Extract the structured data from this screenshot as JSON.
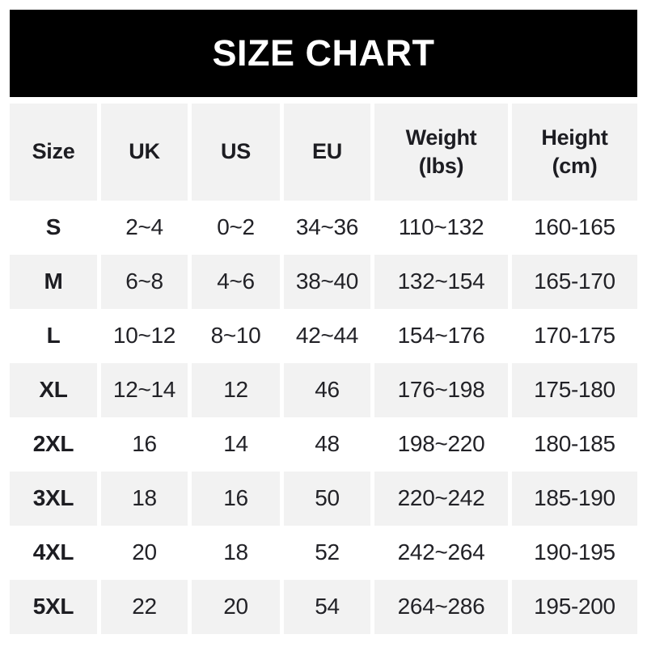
{
  "title": "SIZE CHART",
  "colors": {
    "banner_bg": "#000000",
    "banner_text": "#ffffff",
    "alt_row_bg": "#f2f2f2",
    "text": "#222227",
    "page_bg": "#ffffff"
  },
  "chart_data": {
    "type": "table",
    "title": "SIZE CHART",
    "columns": [
      "Size",
      "UK",
      "US",
      "EU",
      "Weight (lbs)",
      "Height (cm)"
    ],
    "rows": [
      [
        "S",
        "2~4",
        "0~2",
        "34~36",
        "110~132",
        "160-165"
      ],
      [
        "M",
        "6~8",
        "4~6",
        "38~40",
        "132~154",
        "165-170"
      ],
      [
        "L",
        "10~12",
        "8~10",
        "42~44",
        "154~176",
        "170-175"
      ],
      [
        "XL",
        "12~14",
        "12",
        "46",
        "176~198",
        "175-180"
      ],
      [
        "2XL",
        "16",
        "14",
        "48",
        "198~220",
        "180-185"
      ],
      [
        "3XL",
        "18",
        "16",
        "50",
        "220~242",
        "185-190"
      ],
      [
        "4XL",
        "20",
        "18",
        "52",
        "242~264",
        "190-195"
      ],
      [
        "5XL",
        "22",
        "20",
        "54",
        "264~286",
        "195-200"
      ]
    ],
    "layout": {
      "alternating_rows": "white and light gray starting white on first data row",
      "header_background": "light gray",
      "column_separators": "white gaps"
    }
  },
  "table": {
    "headers": [
      {
        "line1": "Size",
        "line2": ""
      },
      {
        "line1": "UK",
        "line2": ""
      },
      {
        "line1": "US",
        "line2": ""
      },
      {
        "line1": "EU",
        "line2": ""
      },
      {
        "line1": "Weight",
        "line2": "(lbs)"
      },
      {
        "line1": "Height",
        "line2": "(cm)"
      }
    ]
  }
}
